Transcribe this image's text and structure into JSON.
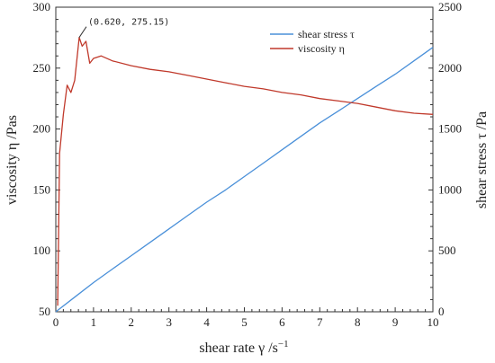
{
  "chart_data": {
    "type": "line",
    "xlabel": "shear rate γ  /s",
    "xlabel_sup": "−1",
    "ylabel_left": "viscosity η  /Pas",
    "ylabel_right": "shear stress τ  /Pa",
    "xlim": [
      0,
      10
    ],
    "ylim_left": [
      50,
      300
    ],
    "ylim_right": [
      0,
      2500
    ],
    "xticks": [
      "0",
      "1",
      "2",
      "3",
      "4",
      "5",
      "6",
      "7",
      "8",
      "9",
      "10"
    ],
    "yticks_left": [
      "50",
      "100",
      "150",
      "200",
      "250",
      "300"
    ],
    "yticks_right": [
      "0",
      "500",
      "1000",
      "1500",
      "2000",
      "2500"
    ],
    "grid": false,
    "legend_position": "top-right",
    "legend": [
      "shear stress τ",
      "viscosity η"
    ],
    "annotation": {
      "text": "(0.620,  275.15)",
      "x": 0.62,
      "y": 275.15
    },
    "series": [
      {
        "name": "shear stress τ",
        "axis": "right",
        "color": "#4a90d9",
        "x": [
          0,
          0.5,
          1,
          1.5,
          2,
          2.5,
          3,
          3.5,
          4,
          4.5,
          5,
          5.5,
          6,
          6.5,
          7,
          7.5,
          8,
          8.5,
          9,
          9.5,
          10
        ],
        "y": [
          0,
          120,
          240,
          350,
          460,
          570,
          680,
          790,
          900,
          1000,
          1110,
          1220,
          1330,
          1440,
          1550,
          1650,
          1750,
          1850,
          1950,
          2060,
          2170
        ]
      },
      {
        "name": "viscosity η",
        "axis": "left",
        "color": "#c0392b",
        "x": [
          0.05,
          0.1,
          0.2,
          0.3,
          0.4,
          0.5,
          0.62,
          0.7,
          0.8,
          0.9,
          1.0,
          1.2,
          1.5,
          2.0,
          2.5,
          3.0,
          3.5,
          4.0,
          4.5,
          5.0,
          5.5,
          6.0,
          6.5,
          7.0,
          7.5,
          8.0,
          8.5,
          9.0,
          9.5,
          10.0
        ],
        "y": [
          55,
          180,
          212,
          236,
          230,
          240,
          275.15,
          268,
          272,
          254,
          258,
          260,
          256,
          252,
          249,
          247,
          244,
          241,
          238,
          235,
          233,
          230,
          228,
          225,
          223,
          221,
          218,
          215,
          213,
          212
        ]
      }
    ]
  }
}
